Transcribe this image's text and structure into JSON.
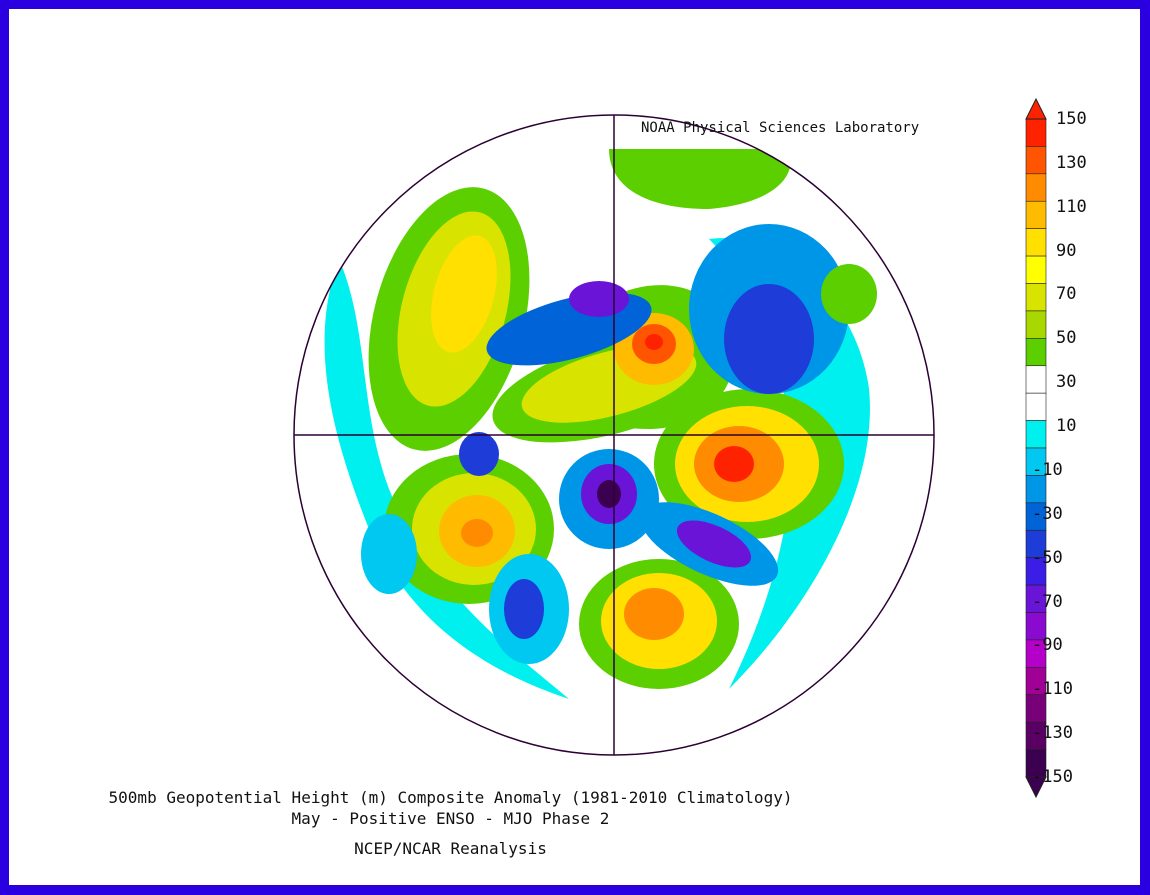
{
  "credit": "NOAA Physical Sciences Laboratory",
  "title_line1": "500mb Geopotential Height (m) Composite Anomaly (1981-2010 Climatology)",
  "title_line2": "May - Positive ENSO - MJO Phase 2",
  "title_line3": "NCEP/NCAR Reanalysis",
  "colorbar": {
    "tick_labels": [
      "150",
      "130",
      "110",
      "90",
      "70",
      "50",
      "30",
      "10",
      "-10",
      "-30",
      "-50",
      "-70",
      "-90",
      "-110",
      "-130",
      "-150"
    ],
    "colors": [
      "#ff2200",
      "#ff5500",
      "#ff8c00",
      "#ffbb00",
      "#ffe000",
      "#ffff00",
      "#d8e400",
      "#a8d800",
      "#5bcf00",
      "#ffffff",
      "#ffffff",
      "#00f0f0",
      "#00c8f0",
      "#0096e8",
      "#0064d8",
      "#1e3cd8",
      "#3a1ee6",
      "#6a14d8",
      "#8a0ad0",
      "#b400c8",
      "#a00096",
      "#780078",
      "#5a0064",
      "#3c0050"
    ],
    "range": [
      -150,
      150
    ]
  },
  "map": {
    "projection": "polar-stereographic",
    "features": [
      {
        "name": "north-pacific-positive",
        "sign": "positive"
      },
      {
        "name": "eurasia-positive-center",
        "sign": "positive"
      },
      {
        "name": "eastern-north-america-positive",
        "sign": "positive"
      },
      {
        "name": "north-atlantic-positive",
        "sign": "positive"
      },
      {
        "name": "siberia-positive",
        "sign": "positive"
      },
      {
        "name": "arctic-negative",
        "sign": "negative"
      },
      {
        "name": "greenland-negative",
        "sign": "negative"
      },
      {
        "name": "hudson-bay-negative",
        "sign": "negative"
      },
      {
        "name": "europe-negative",
        "sign": "negative"
      },
      {
        "name": "west-north-america-negative",
        "sign": "negative"
      }
    ]
  }
}
